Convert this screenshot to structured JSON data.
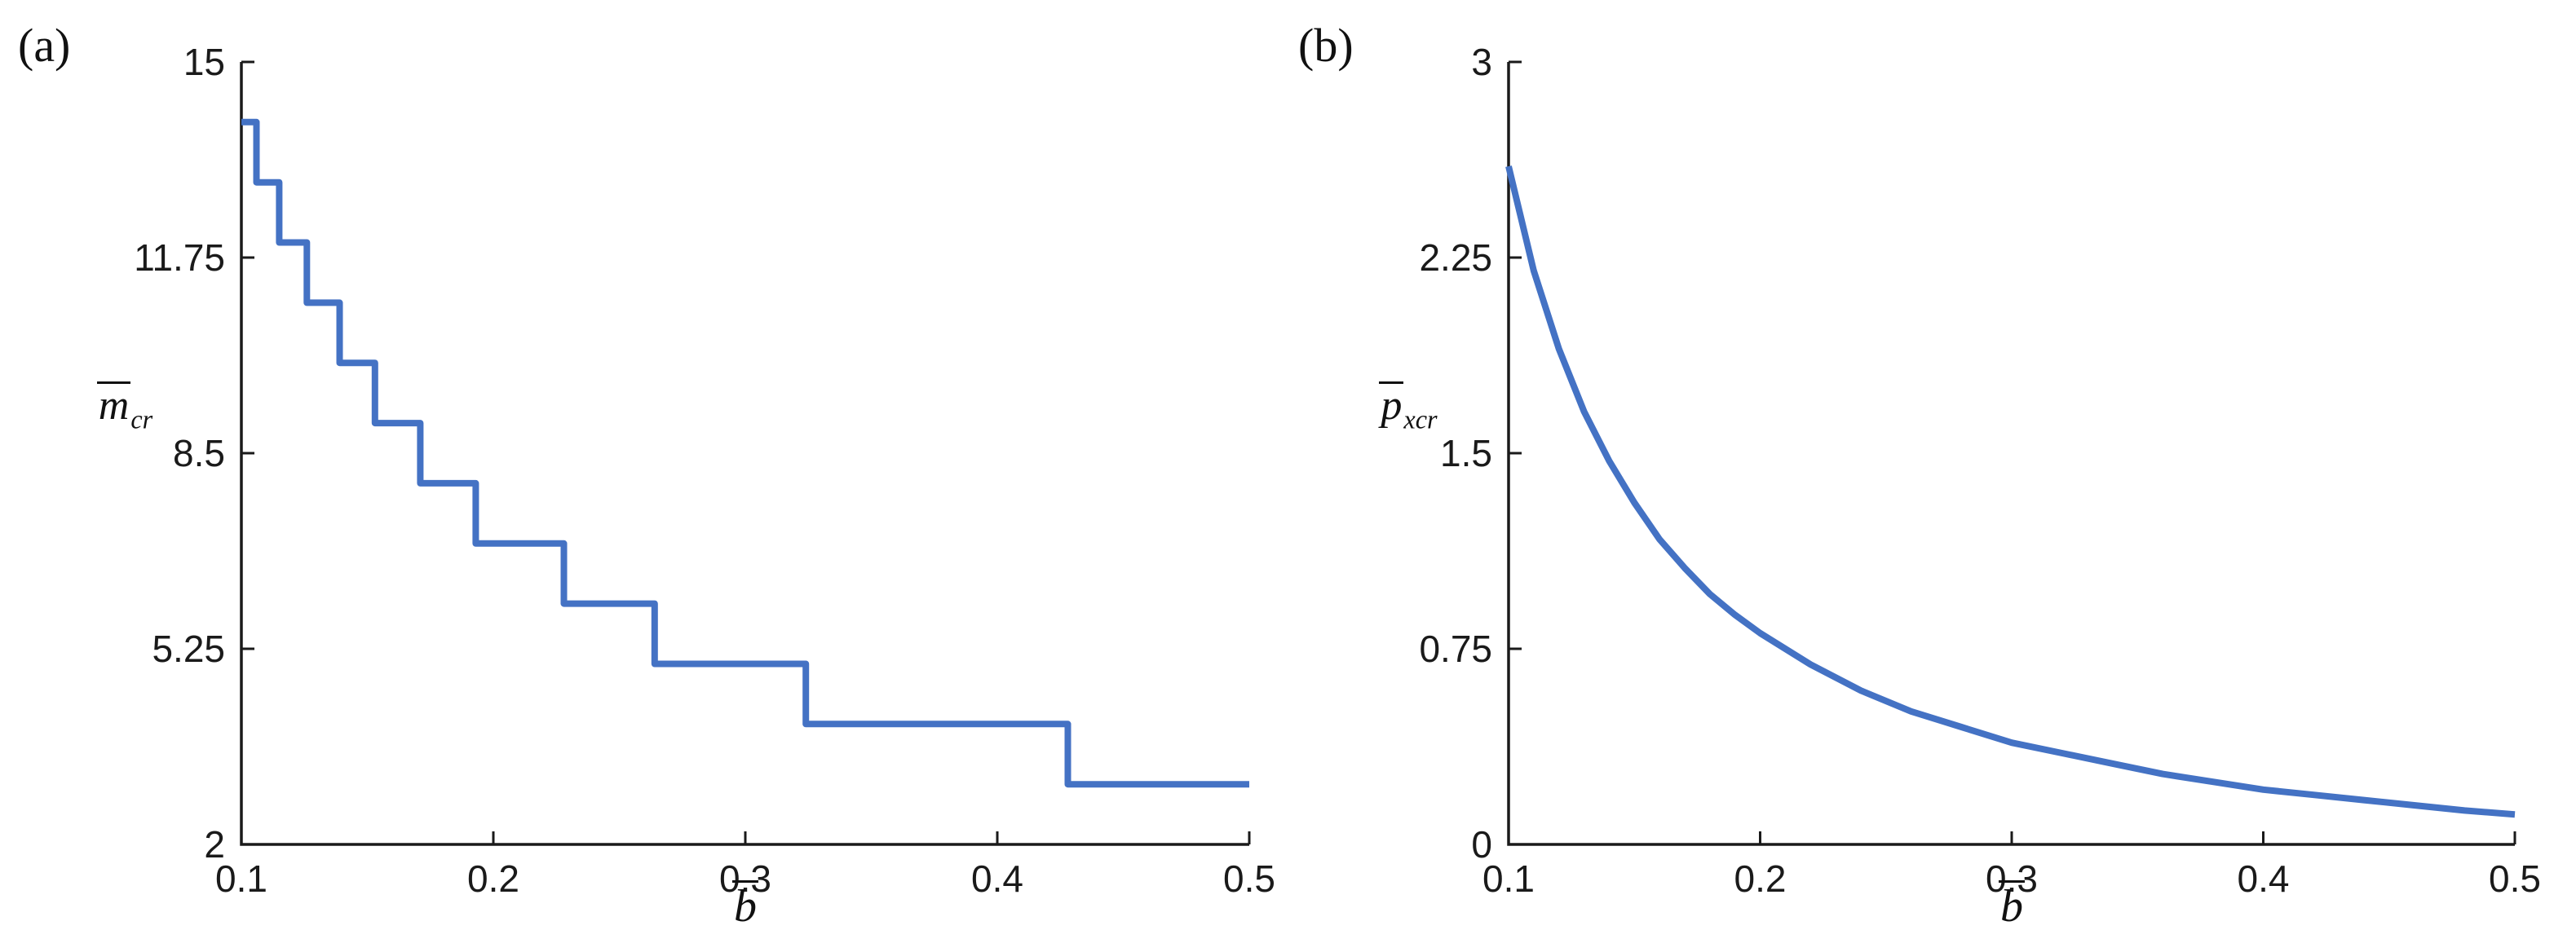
{
  "figure": {
    "background": "#ffffff"
  },
  "style": {
    "line_color": "#4472C4",
    "axis_color": "#1a1a1a"
  },
  "chart_data": [
    {
      "panel_label": "(a)",
      "type": "step",
      "title": "",
      "ylabel_base": "m",
      "ylabel_sub": "cr",
      "xlabel_base": "b",
      "xlabel_overline": true,
      "ylabel_overline": true,
      "xlim": [
        0.1,
        0.5
      ],
      "ylim": [
        2,
        15
      ],
      "xticks": [
        "0.1",
        "0.2",
        "0.3",
        "0.4",
        "0.5"
      ],
      "yticks": [
        "2",
        "5.25",
        "8.5",
        "11.75",
        "15"
      ],
      "grid": false,
      "legend": false,
      "steps": [
        {
          "m": 14,
          "from": 0.1,
          "to": 0.106
        },
        {
          "m": 13,
          "from": 0.106,
          "to": 0.115
        },
        {
          "m": 12,
          "from": 0.115,
          "to": 0.126
        },
        {
          "m": 11,
          "from": 0.126,
          "to": 0.139
        },
        {
          "m": 10,
          "from": 0.139,
          "to": 0.153
        },
        {
          "m": 9,
          "from": 0.153,
          "to": 0.171
        },
        {
          "m": 8,
          "from": 0.171,
          "to": 0.193
        },
        {
          "m": 7,
          "from": 0.193,
          "to": 0.228
        },
        {
          "m": 6,
          "from": 0.228,
          "to": 0.264
        },
        {
          "m": 5,
          "from": 0.264,
          "to": 0.324
        },
        {
          "m": 4,
          "from": 0.324,
          "to": 0.428
        },
        {
          "m": 3,
          "from": 0.428,
          "to": 0.5
        }
      ]
    },
    {
      "panel_label": "(b)",
      "type": "line",
      "title": "",
      "ylabel_base": "p",
      "ylabel_sub": "xcr",
      "xlabel_base": "b",
      "xlabel_overline": true,
      "ylabel_overline": true,
      "xlim": [
        0.1,
        0.5
      ],
      "ylim": [
        0,
        3
      ],
      "xticks": [
        "0.1",
        "0.2",
        "0.3",
        "0.4",
        "0.5"
      ],
      "yticks": [
        "0",
        "0.75",
        "1.5",
        "2.25",
        "3"
      ],
      "grid": false,
      "legend": false,
      "points": [
        [
          0.1,
          2.6
        ],
        [
          0.11,
          2.2
        ],
        [
          0.12,
          1.9
        ],
        [
          0.13,
          1.66
        ],
        [
          0.14,
          1.47
        ],
        [
          0.15,
          1.31
        ],
        [
          0.16,
          1.17
        ],
        [
          0.17,
          1.06
        ],
        [
          0.18,
          0.96
        ],
        [
          0.19,
          0.88
        ],
        [
          0.2,
          0.81
        ],
        [
          0.22,
          0.69
        ],
        [
          0.24,
          0.59
        ],
        [
          0.26,
          0.51
        ],
        [
          0.28,
          0.45
        ],
        [
          0.3,
          0.39
        ],
        [
          0.32,
          0.35
        ],
        [
          0.34,
          0.31
        ],
        [
          0.36,
          0.27
        ],
        [
          0.38,
          0.24
        ],
        [
          0.4,
          0.21
        ],
        [
          0.42,
          0.19
        ],
        [
          0.44,
          0.17
        ],
        [
          0.46,
          0.15
        ],
        [
          0.48,
          0.13
        ],
        [
          0.5,
          0.115
        ]
      ]
    }
  ]
}
